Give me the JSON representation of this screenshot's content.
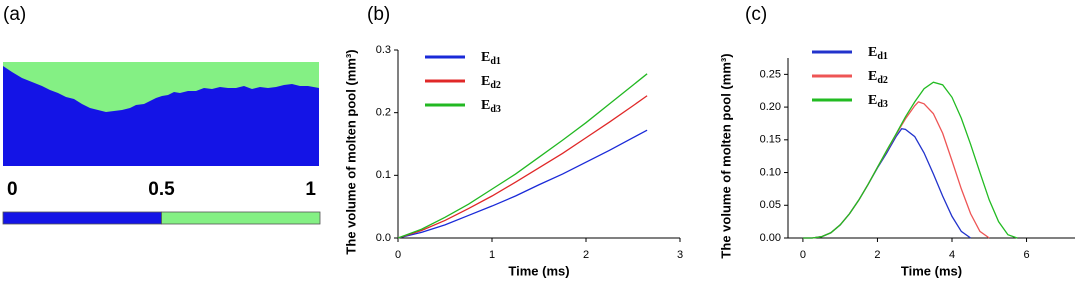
{
  "chart_data": [
    {
      "type": "image",
      "panel_label": "(a)",
      "colorbar": {
        "ticks": [
          0,
          0.5,
          1
        ],
        "colors": [
          "#1414e6",
          "#84f084"
        ]
      }
    },
    {
      "type": "line",
      "panel_label": "(b)",
      "xlabel": "Time (ms)",
      "ylabel": "The volume of molten pool (mm³)",
      "xlim": [
        0,
        3
      ],
      "xticks": [
        0,
        1,
        2,
        3
      ],
      "ylim": [
        0,
        0.3
      ],
      "yticks": [
        {
          "value": 0,
          "label": "0.0"
        },
        0.1,
        0.2,
        0.3
      ],
      "legend": "upper left",
      "x": [
        0,
        0.25,
        0.5,
        0.75,
        1,
        1.25,
        1.5,
        1.75,
        2,
        2.25,
        2.5,
        2.65
      ],
      "series": [
        {
          "name": "Ed1",
          "color": "#1a2ad8",
          "values": [
            0,
            0.009,
            0.021,
            0.036,
            0.051,
            0.067,
            0.085,
            0.102,
            0.121,
            0.14,
            0.16,
            0.172
          ]
        },
        {
          "name": "Ed2",
          "color": "#e02828",
          "values": [
            0,
            0.012,
            0.028,
            0.047,
            0.067,
            0.089,
            0.112,
            0.135,
            0.16,
            0.185,
            0.211,
            0.227
          ]
        },
        {
          "name": "Ed3",
          "color": "#22b822",
          "values": [
            0,
            0.014,
            0.033,
            0.054,
            0.078,
            0.102,
            0.129,
            0.156,
            0.184,
            0.214,
            0.244,
            0.262
          ]
        }
      ]
    },
    {
      "type": "line",
      "panel_label": "(c)",
      "xlabel": "Time (ms)",
      "ylabel": "The volume of molten pool (mm³)",
      "xlim": [
        -0.4,
        7.3
      ],
      "xticks": [
        0,
        2,
        4,
        6
      ],
      "ylim": [
        0,
        0.275
      ],
      "yticks": [
        {
          "value": 0,
          "label": "0.00"
        },
        0.05,
        {
          "value": 0.1,
          "label": "0.10"
        },
        0.15,
        {
          "value": 0.2,
          "label": "0.20"
        },
        0.25
      ],
      "legend": "upper left",
      "series": [
        {
          "name": "Ed1",
          "color": "#2233cc",
          "x": [
            0,
            0.25,
            0.5,
            0.75,
            1,
            1.25,
            1.5,
            1.75,
            2,
            2.25,
            2.5,
            2.65,
            2.75,
            3,
            3.25,
            3.5,
            3.75,
            4,
            4.25,
            4.5
          ],
          "values": [
            0,
            0,
            0.002,
            0.008,
            0.02,
            0.037,
            0.058,
            0.082,
            0.107,
            0.13,
            0.155,
            0.167,
            0.166,
            0.155,
            0.13,
            0.098,
            0.064,
            0.033,
            0.01,
            0
          ]
        },
        {
          "name": "Ed2",
          "color": "#ee5555",
          "x": [
            0,
            0.25,
            0.5,
            0.75,
            1,
            1.25,
            1.5,
            1.75,
            2,
            2.25,
            2.5,
            2.75,
            3,
            3.1,
            3.25,
            3.5,
            3.75,
            4,
            4.25,
            4.5,
            4.75,
            5
          ],
          "values": [
            0,
            0,
            0.002,
            0.008,
            0.02,
            0.037,
            0.058,
            0.082,
            0.108,
            0.133,
            0.158,
            0.182,
            0.202,
            0.208,
            0.205,
            0.19,
            0.16,
            0.118,
            0.075,
            0.037,
            0.01,
            0
          ]
        },
        {
          "name": "Ed3",
          "color": "#22bb22",
          "x": [
            0,
            0.25,
            0.5,
            0.75,
            1,
            1.25,
            1.5,
            1.75,
            2,
            2.25,
            2.5,
            2.75,
            3,
            3.25,
            3.5,
            3.75,
            4,
            4.25,
            4.5,
            4.75,
            5,
            5.25,
            5.5,
            5.75
          ],
          "values": [
            0,
            0,
            0.002,
            0.008,
            0.02,
            0.037,
            0.058,
            0.082,
            0.108,
            0.134,
            0.159,
            0.185,
            0.208,
            0.228,
            0.238,
            0.234,
            0.215,
            0.183,
            0.143,
            0.1,
            0.058,
            0.025,
            0.005,
            0
          ]
        }
      ]
    }
  ]
}
